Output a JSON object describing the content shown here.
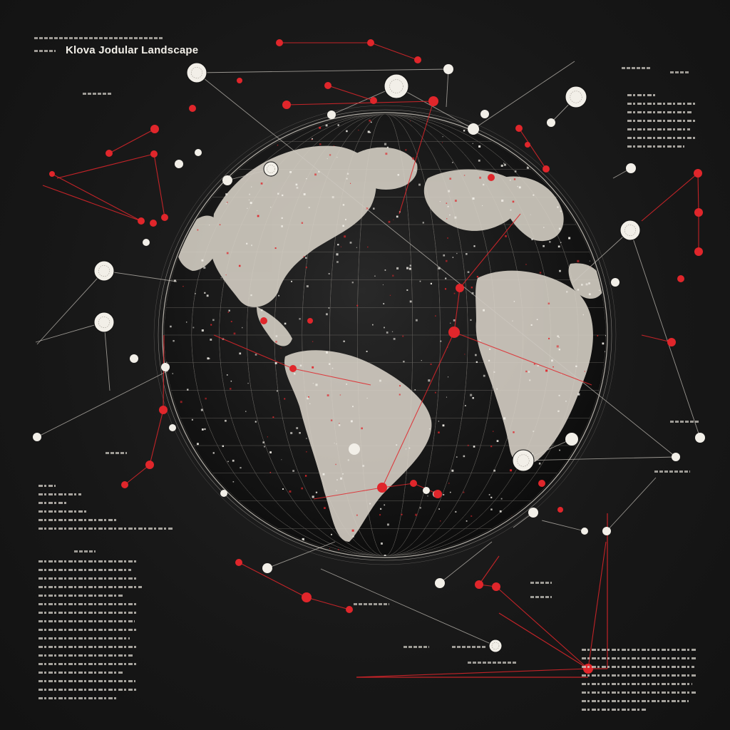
{
  "poster": {
    "title": "Klova Jodular Landscape",
    "colors": {
      "background": "#171717",
      "accent_red": "#e0262b",
      "node_white": "#f2efe8",
      "globe_land": "#d9d3c8",
      "line_white": "#cfcac2"
    },
    "icons": [
      "globe-icon",
      "network-node-icon"
    ]
  }
}
